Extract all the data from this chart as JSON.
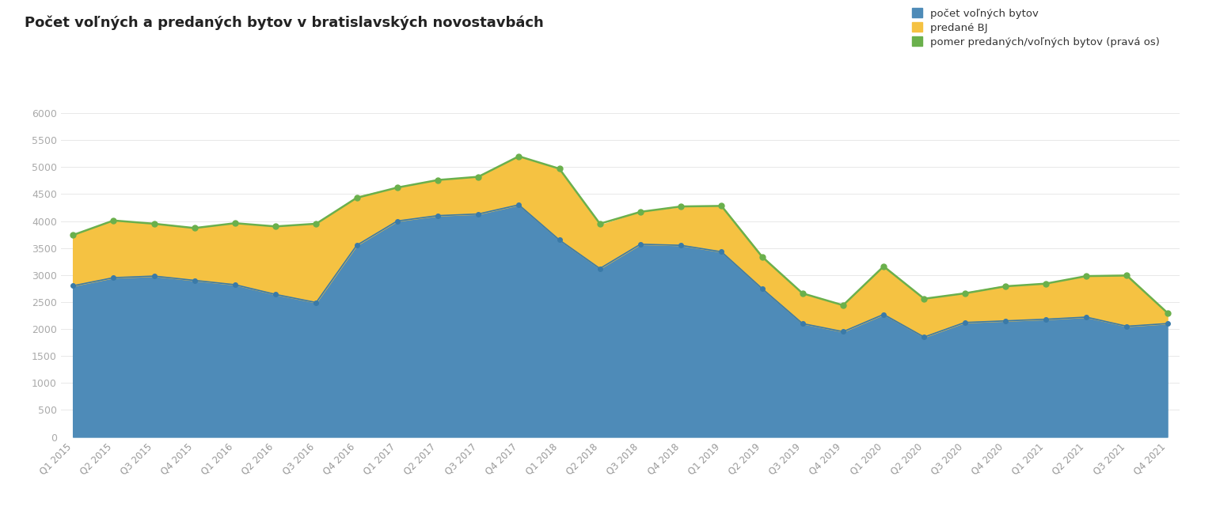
{
  "title": "Počet voľných a predaných bytov v bratislavských novostavbách",
  "quarters": [
    "Q1 2015",
    "Q2 2015",
    "Q3 2015",
    "Q4 2015",
    "Q1 2016",
    "Q2 2016",
    "Q3 2016",
    "Q4 2016",
    "Q1 2017",
    "Q2 2017",
    "Q3 2017",
    "Q4 2017",
    "Q1 2018",
    "Q2 2018",
    "Q3 2018",
    "Q4 2018",
    "Q1 2019",
    "Q2 2019",
    "Q3 2019",
    "Q4 2019",
    "Q1 2020",
    "Q2 2020",
    "Q3 2020",
    "Q4 2020",
    "Q1 2021",
    "Q2 2021",
    "Q3 2021",
    "Q4 2021"
  ],
  "volne": [
    2800,
    2950,
    2980,
    2900,
    2820,
    2640,
    2490,
    3550,
    4000,
    4100,
    4130,
    4300,
    3650,
    3120,
    3570,
    3550,
    3430,
    2750,
    2100,
    1950,
    2270,
    1850,
    2120,
    2150,
    2180,
    2220,
    2050,
    2100
  ],
  "predane": [
    950,
    1050,
    980,
    970,
    1130,
    1250,
    1450,
    900,
    620,
    650,
    700,
    900,
    1300,
    800,
    600,
    700,
    850,
    600,
    550,
    480,
    900,
    700,
    550,
    650,
    650,
    770,
    950,
    200
  ],
  "pomer_display": [
    3740,
    4010,
    3950,
    3870,
    3960,
    3900,
    3950,
    4430,
    4620,
    4760,
    4820,
    5200,
    4970,
    3950,
    4170,
    4270,
    4280,
    3340,
    2660,
    2440,
    3160,
    2560,
    2660,
    2790,
    2840,
    2980,
    2990,
    2300
  ],
  "color_volne": "#4e8bb8",
  "color_predane": "#f5c242",
  "color_pomer": "#6ab04c",
  "legend_labels": [
    "počet voľných bytov",
    "predané BJ",
    "pomer predaných/voľných bytov (pravá os)"
  ],
  "ylim_left": [
    0,
    6000
  ],
  "background_color": "#ffffff",
  "grid_color": "#e8e8e8"
}
